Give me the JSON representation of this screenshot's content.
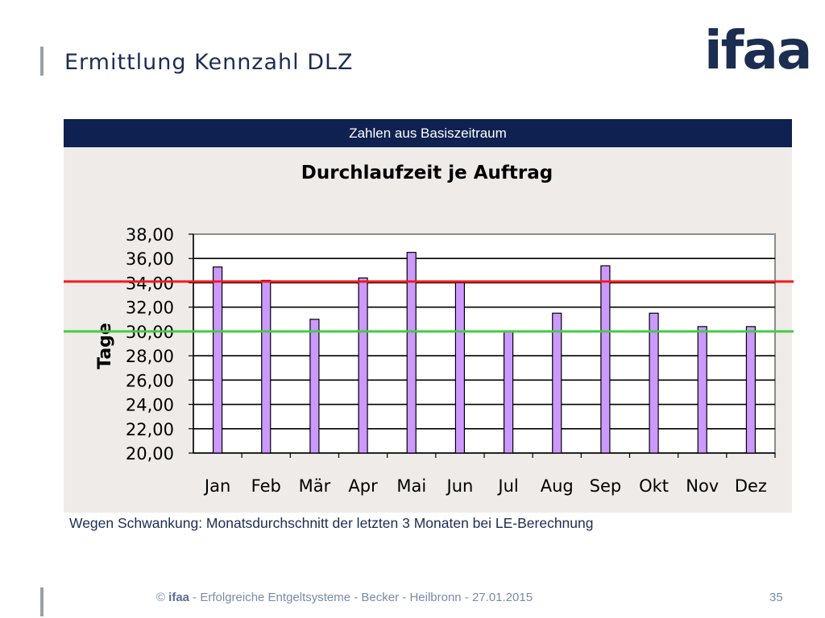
{
  "slide": {
    "title": "Ermittlung Kennzahl DLZ",
    "logo": "ifaa",
    "banner": "Zahlen aus Basiszeitraum",
    "note": "Wegen Schwankung: Monatsdurchschnitt der letzten 3 Monaten bei LE-Berechnung",
    "footer_copyright": "©",
    "footer_brand": "ifaa",
    "footer_text": " - Erfolgreiche Entgeltsysteme - Becker - Heilbronn - 27.01.2015",
    "page_number": "35"
  },
  "chart_data": {
    "type": "bar",
    "title": "Durchlaufzeit je Auftrag",
    "xlabel": "",
    "ylabel": "Tage",
    "categories": [
      "Jan",
      "Feb",
      "Mär",
      "Apr",
      "Mai",
      "Jun",
      "Jul",
      "Aug",
      "Sep",
      "Okt",
      "Nov",
      "Dez"
    ],
    "values": [
      35.3,
      34.2,
      31.0,
      34.4,
      36.5,
      34.0,
      30.0,
      31.5,
      35.4,
      31.5,
      30.4,
      30.4
    ],
    "ylim": [
      20,
      38
    ],
    "ytick_step": 2,
    "ytick_labels": [
      "20,00",
      "22,00",
      "24,00",
      "26,00",
      "28,00",
      "30,00",
      "32,00",
      "34,00",
      "36,00",
      "38,00"
    ],
    "grid": true,
    "legend": "none",
    "bar_color": "#cc99ff",
    "reference_lines": [
      {
        "value": 34.1,
        "color": "#ee1c1c"
      },
      {
        "value": 30.0,
        "color": "#44cc44"
      }
    ]
  }
}
